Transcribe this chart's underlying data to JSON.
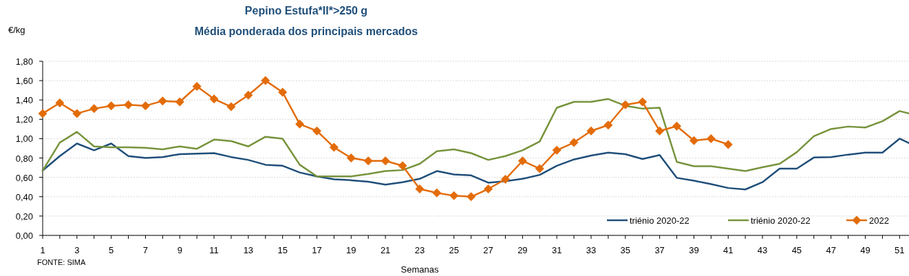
{
  "chart_data": {
    "type": "line",
    "title": "Pepino Estufa*II*>250 g",
    "subtitle": "Média ponderada dos principais mercados",
    "ylabel": "€/kg",
    "xlabel": "Semanas",
    "annotations": [
      "FONTE: SIMA"
    ],
    "xlim": [
      1,
      51.55
    ],
    "xticks": [
      1,
      3,
      5,
      7,
      9,
      11,
      13,
      15,
      17,
      19,
      21,
      23,
      25,
      27,
      29,
      31,
      33,
      35,
      37,
      39,
      41,
      43,
      45,
      47,
      49,
      51
    ],
    "ylim": [
      0,
      1.8
    ],
    "yticks": [
      {
        "value": 0,
        "label": "0,00"
      },
      {
        "value": 0.2,
        "label": "0,20"
      },
      {
        "value": 0.4,
        "label": "0,40"
      },
      {
        "value": 0.6,
        "label": "0,60"
      },
      {
        "value": 0.8,
        "label": "0,80"
      },
      {
        "value": 1,
        "label": "1,00"
      },
      {
        "value": 1.2,
        "label": "1,20"
      },
      {
        "value": 1.4,
        "label": "1,40"
      },
      {
        "value": 1.6,
        "label": "1,60"
      },
      {
        "value": 1.8,
        "label": "1,80"
      }
    ],
    "grid": "y",
    "legend": "bottom right",
    "series": [
      {
        "name": "triénio 2020-22",
        "color": "#1f4e79",
        "marker": "none",
        "x": [
          1,
          2,
          3,
          4,
          5,
          6,
          7,
          8,
          9,
          10,
          11,
          12,
          13,
          14,
          15,
          16,
          17,
          18,
          19,
          20,
          21,
          22,
          23,
          24,
          25,
          26,
          27,
          28,
          29,
          30,
          31,
          32,
          33,
          34,
          35,
          36,
          37,
          38,
          39,
          40,
          41,
          42,
          43,
          44,
          45,
          46,
          47,
          48,
          49,
          50,
          51,
          51.55
        ],
        "values": [
          0.67,
          0.82,
          0.95,
          0.88,
          0.95,
          0.82,
          0.8,
          0.81,
          0.84,
          0.845,
          0.85,
          0.81,
          0.78,
          0.73,
          0.72,
          0.65,
          0.61,
          0.58,
          0.57,
          0.555,
          0.525,
          0.55,
          0.585,
          0.665,
          0.63,
          0.62,
          0.545,
          0.56,
          0.585,
          0.625,
          0.72,
          0.785,
          0.825,
          0.855,
          0.84,
          0.79,
          0.83,
          0.595,
          0.565,
          0.53,
          0.49,
          0.475,
          0.55,
          0.69,
          0.69,
          0.805,
          0.81,
          0.835,
          0.855,
          0.855,
          1.0,
          0.955
        ]
      },
      {
        "name": "triénio 2020-22",
        "color": "#77933c",
        "marker": "none",
        "x": [
          1,
          2,
          3,
          4,
          5,
          6,
          7,
          8,
          9,
          10,
          11,
          12,
          13,
          14,
          15,
          16,
          17,
          18,
          19,
          20,
          21,
          22,
          23,
          24,
          25,
          26,
          27,
          28,
          29,
          30,
          31,
          32,
          33,
          34,
          35,
          36,
          37,
          38,
          39,
          40,
          41,
          42,
          43,
          44,
          45,
          46,
          47,
          48,
          49,
          50,
          51,
          51.55
        ],
        "values": [
          0.67,
          0.96,
          1.07,
          0.92,
          0.91,
          0.91,
          0.905,
          0.89,
          0.92,
          0.895,
          0.99,
          0.975,
          0.92,
          1.02,
          1.0,
          0.73,
          0.61,
          0.61,
          0.61,
          0.635,
          0.665,
          0.675,
          0.74,
          0.87,
          0.89,
          0.85,
          0.78,
          0.82,
          0.88,
          0.97,
          1.32,
          1.38,
          1.38,
          1.41,
          1.34,
          1.31,
          1.32,
          0.76,
          0.715,
          0.715,
          0.69,
          0.665,
          0.705,
          0.74,
          0.86,
          1.025,
          1.1,
          1.125,
          1.115,
          1.18,
          1.285,
          1.26
        ]
      },
      {
        "name": "2022",
        "color": "#e36c09",
        "marker": "diamond",
        "x": [
          1,
          2,
          3,
          4,
          5,
          6,
          7,
          8,
          9,
          10,
          11,
          12,
          13,
          14,
          15,
          16,
          17,
          18,
          19,
          20,
          21,
          22,
          23,
          24,
          25,
          26,
          27,
          28,
          29,
          30,
          31,
          32,
          33,
          34,
          35,
          36,
          37,
          38,
          39,
          40,
          41
        ],
        "values": [
          1.26,
          1.37,
          1.26,
          1.31,
          1.34,
          1.35,
          1.34,
          1.39,
          1.38,
          1.54,
          1.41,
          1.33,
          1.45,
          1.6,
          1.48,
          1.15,
          1.08,
          0.91,
          0.8,
          0.77,
          0.77,
          0.72,
          0.48,
          0.44,
          0.41,
          0.4,
          0.48,
          0.58,
          0.77,
          0.69,
          0.88,
          0.96,
          1.08,
          1.14,
          1.35,
          1.38,
          1.08,
          1.13,
          0.98,
          1.0,
          0.94
        ]
      }
    ]
  }
}
